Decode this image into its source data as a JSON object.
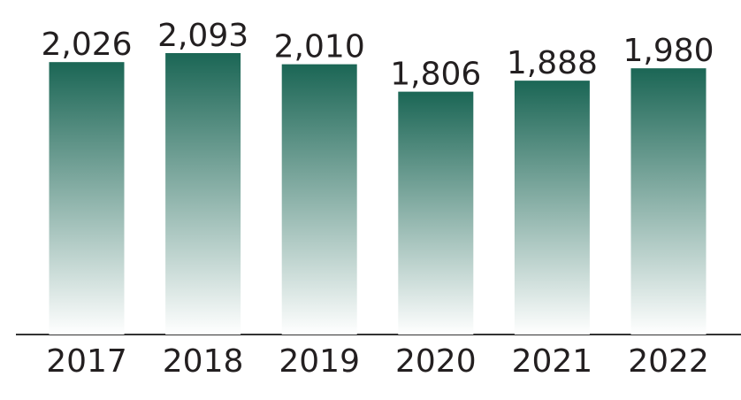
{
  "chart_data": {
    "type": "bar",
    "categories": [
      "2017",
      "2018",
      "2019",
      "2020",
      "2021",
      "2022"
    ],
    "values": [
      2026,
      2093,
      2010,
      1806,
      1888,
      1980
    ],
    "value_labels": [
      "2,026",
      "2,093",
      "2,010",
      "1,806",
      "1,888",
      "1,980"
    ],
    "color": "#1b6655"
  }
}
